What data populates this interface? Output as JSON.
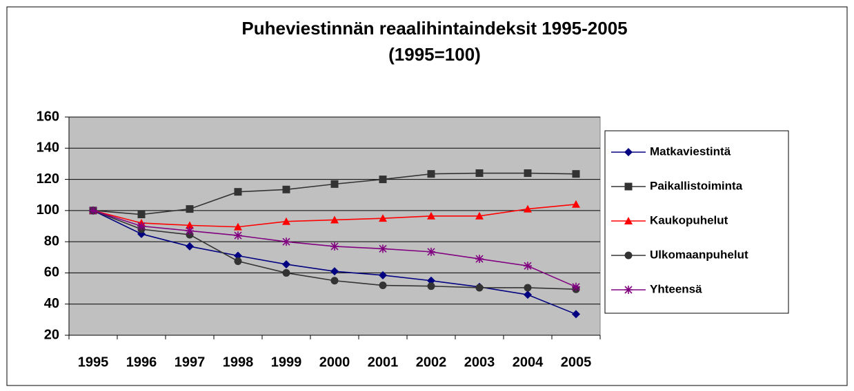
{
  "chart_data": {
    "type": "line",
    "title": [
      "Puheviestinnän reaalihintaindeksit 1995-2005",
      "(1995=100)"
    ],
    "categories": [
      "1995",
      "1996",
      "1997",
      "1998",
      "1999",
      "2000",
      "2001",
      "2002",
      "2003",
      "2004",
      "2005"
    ],
    "series": [
      {
        "name": "Matkaviestintä",
        "color": "#000080",
        "marker": "diamond",
        "values": [
          100,
          85,
          77,
          71,
          65.5,
          61,
          58.5,
          55,
          51,
          46,
          33.5
        ]
      },
      {
        "name": "Paikallistoiminta",
        "color": "#333333",
        "marker": "square",
        "values": [
          100,
          97.5,
          101,
          112,
          113.5,
          117,
          120,
          123.5,
          124,
          124,
          123.5
        ]
      },
      {
        "name": "Kaukopuhelut",
        "color": "#ff0000",
        "marker": "triangle",
        "values": [
          100,
          92,
          90.5,
          89.5,
          93,
          94,
          95,
          96.5,
          96.5,
          101,
          104
        ]
      },
      {
        "name": "Ulkomaanpuhelut",
        "color": "#333333",
        "marker": "circle",
        "values": [
          100,
          88,
          84.5,
          67.5,
          60,
          55,
          52,
          51.5,
          50.5,
          50.5,
          49.5
        ]
      },
      {
        "name": "Yhteensä",
        "color": "#800080",
        "marker": "star",
        "values": [
          100,
          90,
          87,
          84,
          80,
          77,
          75.5,
          73.5,
          69,
          64.5,
          51
        ]
      }
    ],
    "ylim": [
      20,
      160
    ],
    "yticks": [
      20,
      40,
      60,
      80,
      100,
      120,
      140,
      160
    ],
    "grid": true,
    "legend": "right"
  }
}
